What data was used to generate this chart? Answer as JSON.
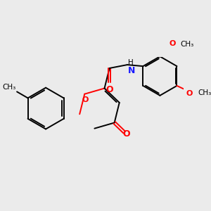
{
  "bg_color": "#ebebeb",
  "bond_color": "#000000",
  "o_color": "#ff0000",
  "n_color": "#1a1aff",
  "line_width": 1.4,
  "dbo": 0.055,
  "figsize": [
    3.0,
    3.0
  ],
  "dpi": 100,
  "xlim": [
    -0.5,
    5.8
  ],
  "ylim": [
    -1.2,
    2.2
  ]
}
